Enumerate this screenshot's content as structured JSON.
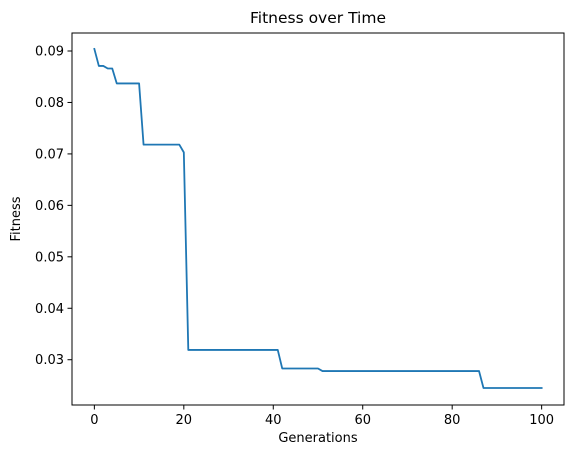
{
  "chart_data": {
    "type": "line",
    "title": "Fitness over Time",
    "xlabel": "Generations",
    "ylabel": "Fitness",
    "xlim": [
      -5,
      105
    ],
    "ylim": [
      0.0212,
      0.0935
    ],
    "xticks": [
      0,
      20,
      40,
      60,
      80,
      100
    ],
    "xtick_labels": [
      "0",
      "20",
      "40",
      "60",
      "80",
      "100"
    ],
    "yticks": [
      0.03,
      0.04,
      0.05,
      0.06,
      0.07,
      0.08,
      0.09
    ],
    "ytick_labels": [
      "0.03",
      "0.04",
      "0.05",
      "0.06",
      "0.07",
      "0.08",
      "0.09"
    ],
    "grid": false,
    "series": [
      {
        "color": "#1f77b4",
        "points": [
          [
            0,
            0.0904
          ],
          [
            1,
            0.0871
          ],
          [
            2,
            0.0871
          ],
          [
            3,
            0.0866
          ],
          [
            4,
            0.0866
          ],
          [
            5,
            0.0837
          ],
          [
            10,
            0.0837
          ],
          [
            11,
            0.0718
          ],
          [
            19,
            0.0718
          ],
          [
            20,
            0.0703
          ],
          [
            21,
            0.0319
          ],
          [
            41,
            0.0319
          ],
          [
            42,
            0.0283
          ],
          [
            50,
            0.0283
          ],
          [
            51,
            0.0278
          ],
          [
            86,
            0.0278
          ],
          [
            87,
            0.0245
          ],
          [
            100,
            0.0245
          ]
        ]
      }
    ]
  }
}
